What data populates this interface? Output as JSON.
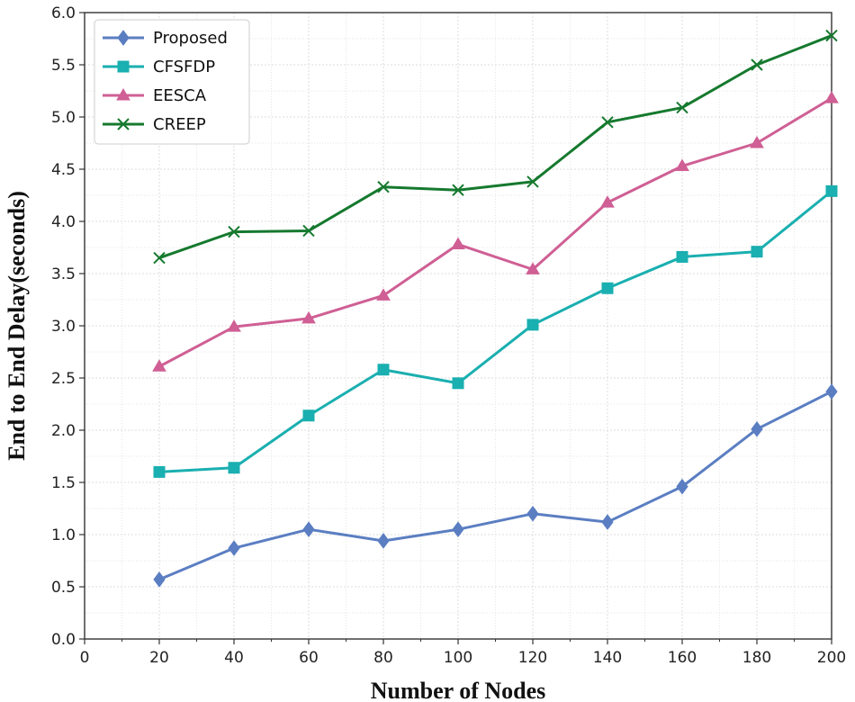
{
  "chart_data": {
    "type": "line",
    "title": "",
    "xlabel": "Number of Nodes",
    "ylabel": "End to End Delay(seconds)",
    "xlim": [
      0,
      200
    ],
    "ylim": [
      0.0,
      6.0
    ],
    "xticks": [
      0,
      20,
      40,
      60,
      80,
      100,
      120,
      140,
      160,
      180,
      200
    ],
    "xtick_labels": [
      "0",
      "20",
      "40",
      "60",
      "80",
      "100",
      "120",
      "140",
      "160",
      "180",
      "200"
    ],
    "yticks": [
      0.0,
      0.5,
      1.0,
      1.5,
      2.0,
      2.5,
      3.0,
      3.5,
      4.0,
      4.5,
      5.0,
      5.5,
      6.0
    ],
    "ytick_labels": [
      "0.0",
      "0.5",
      "1.0",
      "1.5",
      "2.0",
      "2.5",
      "3.0",
      "3.5",
      "4.0",
      "4.5",
      "5.0",
      "5.5",
      "6.0"
    ],
    "grid": true,
    "legend_position": "top-left",
    "x": [
      20,
      40,
      60,
      80,
      100,
      120,
      140,
      160,
      180,
      200
    ],
    "series": [
      {
        "name": "Proposed",
        "color": "#5b7ec2",
        "marker": "diamond",
        "values": [
          0.57,
          0.87,
          1.05,
          0.94,
          1.05,
          1.2,
          1.12,
          1.46,
          2.01,
          2.37
        ]
      },
      {
        "name": "CFSFDP",
        "color": "#1aafb0",
        "marker": "square",
        "values": [
          1.6,
          1.64,
          2.14,
          2.58,
          2.45,
          3.01,
          3.36,
          3.66,
          3.71,
          4.29
        ]
      },
      {
        "name": "EESCA",
        "color": "#cf5f94",
        "marker": "triangle",
        "values": [
          2.61,
          2.99,
          3.07,
          3.29,
          3.78,
          3.54,
          4.18,
          4.53,
          4.75,
          5.18
        ]
      },
      {
        "name": "CREEP",
        "color": "#15792e",
        "marker": "x",
        "values": [
          3.65,
          3.9,
          3.91,
          4.33,
          4.3,
          4.38,
          4.95,
          5.09,
          5.5,
          5.78
        ]
      }
    ]
  }
}
